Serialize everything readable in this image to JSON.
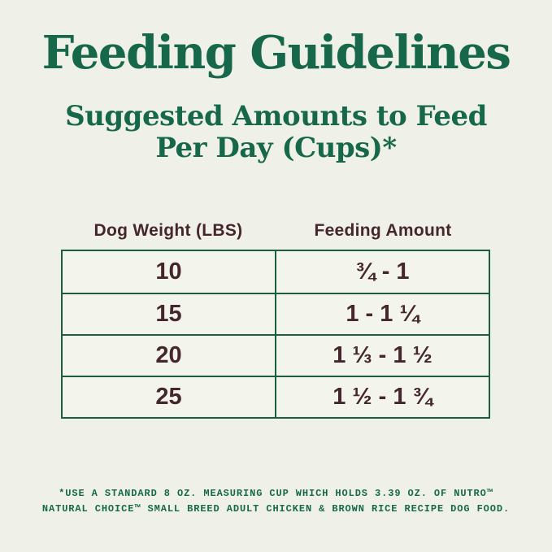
{
  "colors": {
    "background": "#eff1e8",
    "cell-bg": "#f3f5ec",
    "green": "#17684a",
    "brown": "#46262d",
    "border": "#1d5c43"
  },
  "header": {
    "title": "Feeding Guidelines",
    "subtitle_line1": "Suggested Amounts to Feed",
    "subtitle_line2": "Per Day (Cups)*"
  },
  "table": {
    "columns": [
      "Dog Weight (LBS)",
      "Feeding Amount"
    ],
    "rows": [
      {
        "weight": "10",
        "amount": "¾ - 1"
      },
      {
        "weight": "15",
        "amount": "1 - 1 ¼"
      },
      {
        "weight": "20",
        "amount": "1 ⅓ - 1 ½"
      },
      {
        "weight": "25",
        "amount": "1 ½ - 1 ¾"
      }
    ]
  },
  "footnote": {
    "line1": "*USE A STANDARD 8 OZ. MEASURING CUP WHICH HOLDS 3.39 OZ. OF NUTRO™",
    "line2": "NATURAL CHOICE™ SMALL BREED ADULT CHICKEN & BROWN RICE RECIPE DOG FOOD."
  }
}
